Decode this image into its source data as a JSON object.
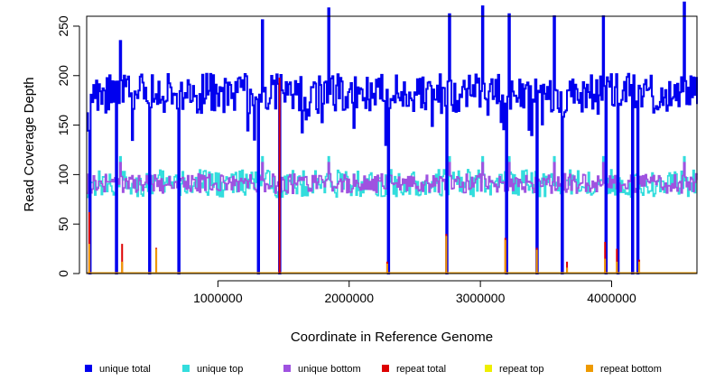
{
  "chart_data": {
    "type": "line",
    "xlabel": "Coordinate in Reference Genome",
    "ylabel": "Read Coverage Depth",
    "xlim": [
      1,
      4650000
    ],
    "ylim": [
      0,
      260
    ],
    "x_ticks": [
      1000000,
      2000000,
      3000000,
      4000000
    ],
    "x_tick_labels": [
      "1000000",
      "2000000",
      "3000000",
      "4000000"
    ],
    "y_ticks": [
      0,
      50,
      100,
      150,
      200,
      250
    ],
    "y_tick_labels": [
      "0",
      "50",
      "100",
      "150",
      "200",
      "250"
    ],
    "series": [
      {
        "name": "unique total",
        "color": "#0000ee",
        "baseline": 182,
        "jitter": 20,
        "spike": 235,
        "dips": true
      },
      {
        "name": "unique top",
        "color": "#33dddd",
        "baseline": 91,
        "jitter": 14,
        "spike": 118,
        "dips": true
      },
      {
        "name": "unique bottom",
        "color": "#9f52e0",
        "baseline": 91,
        "jitter": 10,
        "spike": 112,
        "dips": true
      },
      {
        "name": "repeat total",
        "color": "#dd0000",
        "baseline": 0,
        "jitter": 0
      },
      {
        "name": "repeat top",
        "color": "#eeee00",
        "baseline": 0,
        "jitter": 0
      },
      {
        "name": "repeat bottom",
        "color": "#ee9a00",
        "baseline": 0,
        "jitter": 0
      }
    ],
    "dip_positions": [
      20000,
      220000,
      480000,
      700000,
      1300000,
      1470000,
      2290000,
      2740000,
      3190000,
      3430000,
      3620000,
      3950000,
      4040000,
      4150000,
      4200000
    ],
    "peak_positions": [
      250000,
      1330000,
      1840000,
      2760000,
      3010000,
      3210000,
      3560000,
      3930000,
      4550000
    ],
    "peak_values": [
      235,
      256,
      268,
      262,
      270,
      262,
      260,
      260,
      274
    ],
    "repeat_spikes": [
      {
        "x": 20000,
        "total": 62,
        "bottom": 30
      },
      {
        "x": 270000,
        "total": 30,
        "bottom": 12
      },
      {
        "x": 530000,
        "total": 26,
        "bottom": 25
      },
      {
        "x": 1470000,
        "total": 198,
        "bottom": 0
      },
      {
        "x": 2290000,
        "total": 12,
        "bottom": 10
      },
      {
        "x": 2740000,
        "total": 40,
        "bottom": 38
      },
      {
        "x": 3190000,
        "total": 36,
        "bottom": 34
      },
      {
        "x": 3430000,
        "total": 26,
        "bottom": 24
      },
      {
        "x": 3660000,
        "total": 12,
        "bottom": 6
      },
      {
        "x": 3950000,
        "total": 32,
        "bottom": 15
      },
      {
        "x": 4040000,
        "total": 25,
        "bottom": 12
      },
      {
        "x": 4210000,
        "total": 14,
        "bottom": 12
      }
    ]
  }
}
